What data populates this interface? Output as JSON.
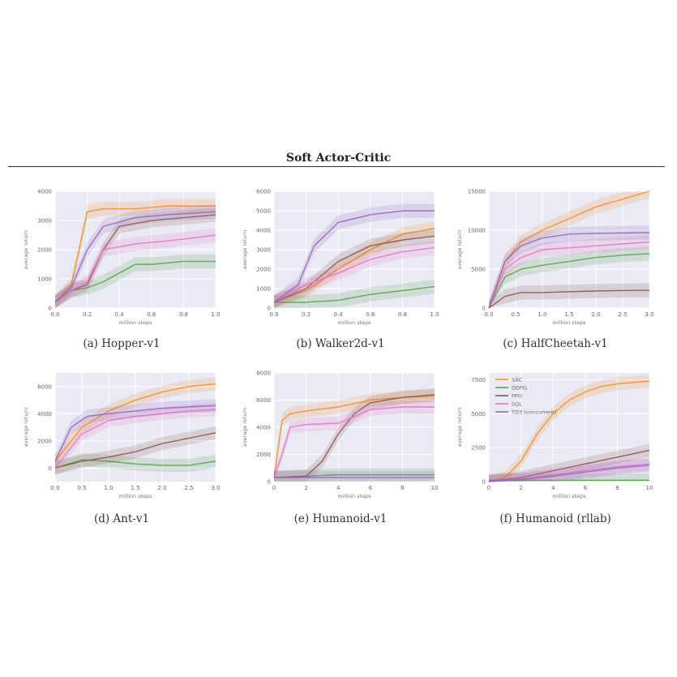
{
  "page": {
    "title": "Soft Actor-Critic"
  },
  "colors": {
    "SAC": "#f28e2b",
    "DDPG": "#59a14f",
    "PPO": "#8c564b",
    "SQL": "#e377c2",
    "TD3": "#9467bd",
    "grid_bg": "#eaeaf4",
    "grid_line": "#ffffff"
  },
  "chart_data": [
    {
      "type": "line",
      "caption": "(a) Hopper-v1",
      "xlabel": "million steps",
      "ylabel": "average return",
      "xlim": [
        0,
        1.0
      ],
      "ylim": [
        0,
        4000
      ],
      "xticks": [
        "0.0",
        "0.2",
        "0.4",
        "0.6",
        "0.8",
        "1.0"
      ],
      "yticks": [
        "0",
        "1000",
        "2000",
        "3000",
        "4000"
      ],
      "series": [
        {
          "key": "SAC",
          "x": [
            0,
            0.1,
            0.15,
            0.2,
            0.3,
            0.5,
            0.7,
            1.0
          ],
          "y": [
            200,
            800,
            2000,
            3300,
            3400,
            3400,
            3500,
            3500
          ]
        },
        {
          "key": "DDPG",
          "x": [
            0,
            0.1,
            0.2,
            0.3,
            0.4,
            0.5,
            0.6,
            0.8,
            1.0
          ],
          "y": [
            200,
            600,
            700,
            900,
            1200,
            1500,
            1500,
            1600,
            1600
          ]
        },
        {
          "key": "PPO",
          "x": [
            0,
            0.1,
            0.2,
            0.3,
            0.4,
            0.6,
            0.8,
            1.0
          ],
          "y": [
            200,
            600,
            800,
            2000,
            2800,
            3000,
            3100,
            3200
          ]
        },
        {
          "key": "SQL",
          "x": [
            0,
            0.1,
            0.2,
            0.3,
            0.5,
            0.7,
            1.0
          ],
          "y": [
            200,
            600,
            900,
            2000,
            2200,
            2300,
            2500
          ]
        },
        {
          "key": "TD3",
          "x": [
            0,
            0.1,
            0.2,
            0.3,
            0.5,
            0.7,
            1.0
          ],
          "y": [
            200,
            700,
            2000,
            2800,
            3100,
            3200,
            3300
          ]
        }
      ]
    },
    {
      "type": "line",
      "caption": "(b) Walker2d-v1",
      "xlabel": "million steps",
      "ylabel": "average return",
      "xlim": [
        0,
        1.0
      ],
      "ylim": [
        0,
        6000
      ],
      "xticks": [
        "0.0",
        "0.2",
        "0.4",
        "0.6",
        "0.8",
        "1.0"
      ],
      "yticks": [
        "0",
        "1000",
        "2000",
        "3000",
        "4000",
        "5000",
        "6000"
      ],
      "series": [
        {
          "key": "SAC",
          "x": [
            0,
            0.2,
            0.4,
            0.6,
            0.8,
            1.0
          ],
          "y": [
            300,
            900,
            2000,
            3000,
            3800,
            4100
          ]
        },
        {
          "key": "DDPG",
          "x": [
            0,
            0.2,
            0.4,
            0.6,
            0.8,
            1.0
          ],
          "y": [
            300,
            300,
            400,
            700,
            900,
            1100
          ]
        },
        {
          "key": "PPO",
          "x": [
            0,
            0.2,
            0.4,
            0.6,
            0.8,
            1.0
          ],
          "y": [
            300,
            1000,
            2400,
            3200,
            3500,
            3700
          ]
        },
        {
          "key": "SQL",
          "x": [
            0,
            0.2,
            0.4,
            0.6,
            0.8,
            1.0
          ],
          "y": [
            300,
            1200,
            1800,
            2500,
            2900,
            3100
          ]
        },
        {
          "key": "TD3",
          "x": [
            0,
            0.15,
            0.25,
            0.4,
            0.6,
            0.8,
            1.0
          ],
          "y": [
            300,
            1200,
            3200,
            4400,
            4800,
            5000,
            5000
          ]
        }
      ]
    },
    {
      "type": "line",
      "caption": "(c) HalfCheetah-v1",
      "xlabel": "million steps",
      "ylabel": "average return",
      "xlim": [
        0,
        3.0
      ],
      "ylim": [
        0,
        15000
      ],
      "xticks": [
        "0.0",
        "0.5",
        "1.0",
        "1.5",
        "2.0",
        "2.5",
        "3.0"
      ],
      "yticks": [
        "0",
        "5000",
        "10000",
        "15000"
      ],
      "series": [
        {
          "key": "SAC",
          "x": [
            0,
            0.3,
            0.6,
            1.0,
            1.5,
            2.0,
            2.5,
            3.0
          ],
          "y": [
            0,
            6000,
            8500,
            10000,
            11500,
            13000,
            14000,
            15000
          ]
        },
        {
          "key": "DDPG",
          "x": [
            0,
            0.3,
            0.6,
            1.0,
            1.5,
            2.0,
            2.5,
            3.0
          ],
          "y": [
            0,
            4000,
            5000,
            5500,
            6000,
            6500,
            6800,
            7000
          ]
        },
        {
          "key": "PPO",
          "x": [
            0,
            0.3,
            0.6,
            1.0,
            2.0,
            3.0
          ],
          "y": [
            0,
            1500,
            2000,
            2000,
            2200,
            2300
          ]
        },
        {
          "key": "SQL",
          "x": [
            0,
            0.3,
            0.6,
            1.0,
            2.0,
            3.0
          ],
          "y": [
            0,
            5000,
            6500,
            7500,
            8000,
            8500
          ]
        },
        {
          "key": "TD3",
          "x": [
            0,
            0.3,
            0.6,
            1.0,
            1.5,
            2.0,
            3.0
          ],
          "y": [
            0,
            6000,
            8000,
            9000,
            9500,
            9600,
            9700
          ]
        }
      ]
    },
    {
      "type": "line",
      "caption": "(d) Ant-v1",
      "xlabel": "million steps",
      "ylabel": "average return",
      "xlim": [
        0,
        3.0
      ],
      "ylim": [
        -1000,
        7000
      ],
      "xticks": [
        "0.0",
        "0.5",
        "1.0",
        "1.5",
        "2.0",
        "2.5",
        "3.0"
      ],
      "yticks": [
        "0",
        "2000",
        "4000",
        "6000"
      ],
      "series": [
        {
          "key": "SAC",
          "x": [
            0,
            0.5,
            1.0,
            1.5,
            2.0,
            2.5,
            3.0
          ],
          "y": [
            500,
            3000,
            4200,
            5000,
            5600,
            6000,
            6200
          ]
        },
        {
          "key": "DDPG",
          "x": [
            0,
            0.5,
            1.0,
            1.5,
            2.0,
            2.5,
            3.0
          ],
          "y": [
            0,
            600,
            500,
            300,
            200,
            200,
            500
          ]
        },
        {
          "key": "PPO",
          "x": [
            0,
            0.5,
            1.0,
            1.5,
            2.0,
            2.5,
            3.0
          ],
          "y": [
            0,
            500,
            800,
            1200,
            1800,
            2200,
            2600
          ]
        },
        {
          "key": "SQL",
          "x": [
            0,
            0.5,
            1.0,
            1.5,
            2.0,
            2.5,
            3.0
          ],
          "y": [
            0,
            2500,
            3500,
            3800,
            4000,
            4200,
            4300
          ]
        },
        {
          "key": "TD3",
          "x": [
            0,
            0.3,
            0.6,
            1.0,
            1.5,
            2.0,
            2.5,
            3.0
          ],
          "y": [
            500,
            3000,
            3800,
            4000,
            4200,
            4400,
            4500,
            4600
          ]
        }
      ]
    },
    {
      "type": "line",
      "caption": "(e) Humanoid-v1",
      "xlabel": "million steps",
      "ylabel": "average return",
      "xlim": [
        0,
        10
      ],
      "ylim": [
        0,
        8000
      ],
      "xticks": [
        "0",
        "2",
        "4",
        "6",
        "8",
        "10"
      ],
      "yticks": [
        "0",
        "2000",
        "4000",
        "6000",
        "8000"
      ],
      "series": [
        {
          "key": "SAC",
          "x": [
            0,
            0.5,
            1,
            2,
            4,
            6,
            8,
            10
          ],
          "y": [
            300,
            4500,
            5000,
            5200,
            5500,
            6000,
            6200,
            6300
          ]
        },
        {
          "key": "DDPG",
          "x": [
            0,
            2,
            4,
            6,
            8,
            10
          ],
          "y": [
            300,
            400,
            500,
            500,
            500,
            500
          ]
        },
        {
          "key": "PPO",
          "x": [
            0,
            2,
            3,
            4,
            5,
            6,
            8,
            10
          ],
          "y": [
            300,
            400,
            1500,
            3500,
            5000,
            5800,
            6200,
            6400
          ]
        },
        {
          "key": "SQL",
          "x": [
            0,
            0.5,
            1,
            2,
            4,
            6,
            8,
            10
          ],
          "y": [
            300,
            2000,
            4000,
            4200,
            4300,
            5300,
            5500,
            5500
          ]
        },
        {
          "key": "TD3",
          "x": [
            0,
            2,
            4,
            6,
            8,
            10
          ],
          "y": [
            300,
            300,
            300,
            300,
            300,
            300
          ]
        }
      ]
    },
    {
      "type": "line",
      "caption": "(f) Humanoid (rllab)",
      "xlabel": "million steps",
      "ylabel": "average return",
      "xlim": [
        0,
        10
      ],
      "ylim": [
        0,
        8000
      ],
      "xticks": [
        "0",
        "2",
        "4",
        "6",
        "8",
        "10"
      ],
      "yticks": [
        "0",
        "2500",
        "5000",
        "7500"
      ],
      "legend": {
        "placement": "top-left",
        "entries": [
          {
            "key": "SAC",
            "label": "SAC"
          },
          {
            "key": "DDPG",
            "label": "DDPG"
          },
          {
            "key": "PPO",
            "label": "PPO"
          },
          {
            "key": "SQL",
            "label": "SQL"
          },
          {
            "key": "TD3",
            "label": "TD3 (concurrent)"
          }
        ]
      },
      "series": [
        {
          "key": "SAC",
          "x": [
            0,
            1,
            2,
            3,
            4,
            5,
            6,
            7,
            8,
            9,
            10
          ],
          "y": [
            0,
            300,
            1500,
            3500,
            5000,
            6000,
            6600,
            7000,
            7200,
            7300,
            7400
          ]
        },
        {
          "key": "DDPG",
          "x": [
            0,
            2,
            4,
            6,
            8,
            10
          ],
          "y": [
            100,
            100,
            100,
            100,
            100,
            100
          ]
        },
        {
          "key": "PPO",
          "x": [
            0,
            2,
            4,
            6,
            8,
            10
          ],
          "y": [
            0,
            300,
            800,
            1300,
            1800,
            2300
          ]
        },
        {
          "key": "SQL",
          "x": [
            0,
            2,
            4,
            6,
            8,
            10
          ],
          "y": [
            0,
            200,
            500,
            800,
            1100,
            1300
          ]
        },
        {
          "key": "TD3",
          "x": [
            0,
            2,
            4,
            6,
            8,
            10
          ],
          "y": [
            0,
            150,
            400,
            700,
            1000,
            1200
          ]
        }
      ]
    }
  ]
}
